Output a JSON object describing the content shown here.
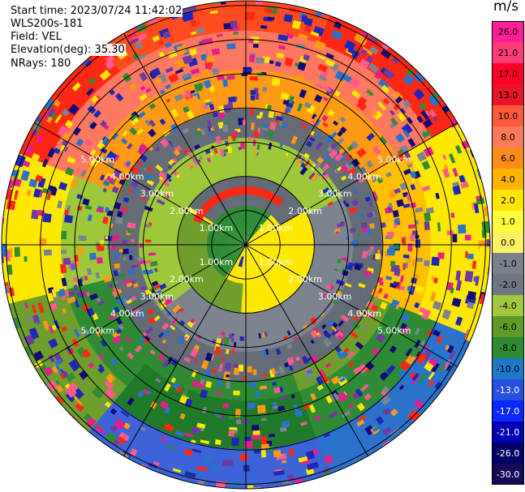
{
  "header": {
    "start_time": "Start time: 2023/07/24 11:42:02",
    "instrument": "WLS200s-181",
    "field": "Field: VEL",
    "elevation": "Elevation(deg): 35.30",
    "nrays": "NRays: 180"
  },
  "range_rings": [
    "1.00km",
    "2.00km",
    "3.00km",
    "4.00km",
    "5.00km"
  ],
  "colorbar": {
    "unit": "m/s",
    "ticks": [
      "26.0",
      "21.0",
      "17.0",
      "13.0",
      "10.0",
      "8.0",
      "6.0",
      "4.0",
      "2.0",
      "1.0",
      "0.0",
      "-1.0",
      "-2.0",
      "-4.0",
      "-6.0",
      "-8.0",
      "-10.0",
      "-13.0",
      "-17.0",
      "-21.0",
      "-26.0",
      "-30.0"
    ],
    "colors": [
      "#ff1e96",
      "#ff3c78",
      "#ff0028",
      "#e8142a",
      "#ff5a3c",
      "#ff7a5a",
      "#ff8c1a",
      "#ffb400",
      "#ffe600",
      "#ffff3c",
      "#fcf064",
      "#7a808c",
      "#6e7682",
      "#a0c83c",
      "#5f9a28",
      "#2d8c32",
      "#1e78c8",
      "#2850e0",
      "#0a28ff",
      "#0000b4",
      "#000064",
      "#140a5a"
    ]
  },
  "ppi": {
    "field": "radial velocity",
    "max_range_km": 6.0,
    "ring_step_km": 1.0
  }
}
